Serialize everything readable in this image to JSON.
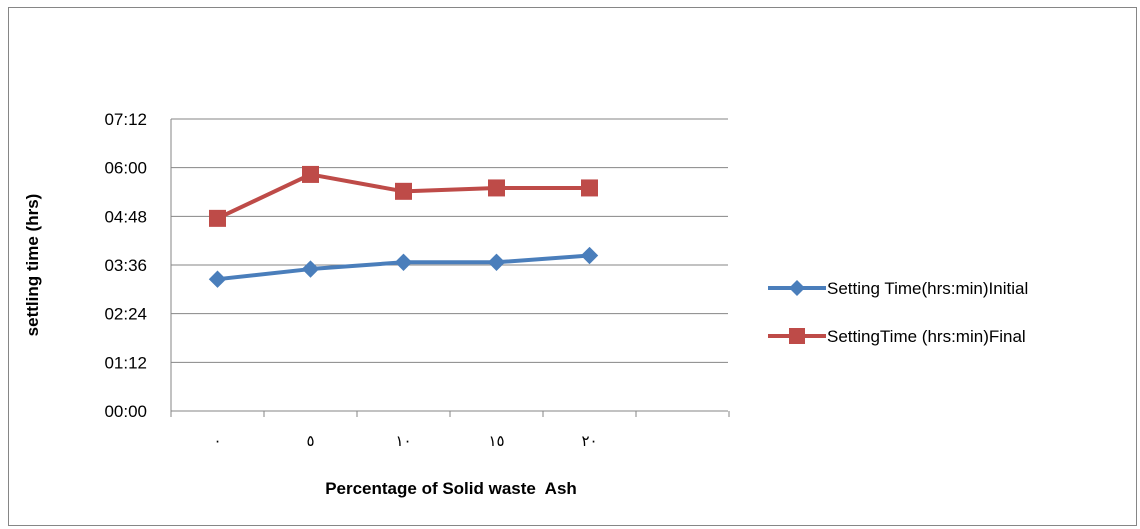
{
  "chart_data": {
    "type": "line",
    "title": "",
    "xlabel": "Percentage of Solid waste  Ash",
    "ylabel": "settling time (hrs)",
    "categories": [
      "٠",
      "٥",
      "١٠",
      "١٥",
      "٢٠"
    ],
    "y_ticks": [
      "00:00",
      "01:12",
      "02:24",
      "03:36",
      "04:48",
      "06:00",
      "07:12"
    ],
    "ylim": [
      0,
      432
    ],
    "y_unit": "minutes",
    "grid": true,
    "legend_position": "right",
    "series": [
      {
        "name": "Setting Time(hrs:min)Initial",
        "color": "#4a7ebb",
        "marker": "diamond",
        "values": [
          195,
          210,
          220,
          220,
          230
        ]
      },
      {
        "name": "SettingTime (hrs:min)Final",
        "color": "#be4b48",
        "marker": "square",
        "values": [
          285,
          350,
          325,
          330,
          330
        ]
      }
    ]
  }
}
